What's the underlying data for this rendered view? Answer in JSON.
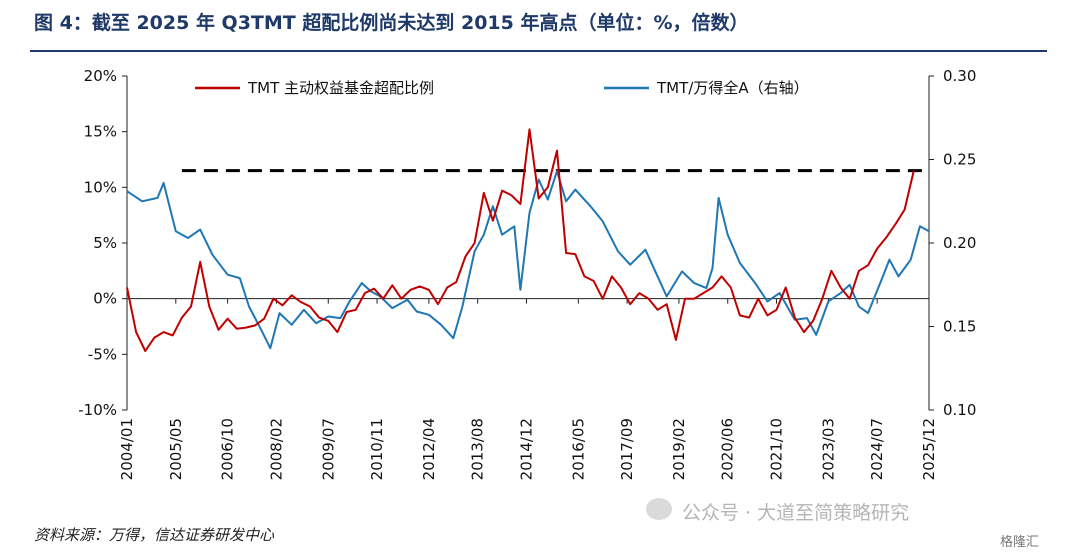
{
  "title": "图 4：截至 2025 年 Q3TMT 超配比例尚未达到 2015 年高点（单位：%，倍数）",
  "source": "资料来源：万得，信达证券研发中心",
  "watermark": "公众号 · 大道至简策略研究",
  "logo": "格隆汇",
  "colors": {
    "title": "#1f3a68",
    "series_red": "#c00000",
    "series_blue": "#1f77b4",
    "reference_line": "#000000"
  },
  "chart_data": {
    "type": "line",
    "title": "",
    "x_tick_labels": [
      "2004/01",
      "2005/05",
      "2006/10",
      "2008/02",
      "2009/07",
      "2010/11",
      "2012/04",
      "2013/08",
      "2014/12",
      "2016/05",
      "2017/09",
      "2019/02",
      "2020/06",
      "2021/10",
      "2023/03",
      "2024/07",
      "2025/12"
    ],
    "y_left": {
      "ticks": [
        "20%",
        "15%",
        "10%",
        "5%",
        "0%",
        "-5%",
        "-10%"
      ],
      "ylim": [
        -10,
        20
      ],
      "unit": "%"
    },
    "y_right": {
      "ticks": [
        "0.30",
        "0.25",
        "0.20",
        "0.15",
        "0.10"
      ],
      "ylim": [
        0.1,
        0.3
      ]
    },
    "legend": {
      "placement": "top"
    },
    "reference_line": {
      "axis": "left",
      "value": 11.5,
      "style": "dashed",
      "x_from": "2005/07",
      "x_to": "2025/12"
    },
    "series": [
      {
        "name": "TMT 主动权益基金超配比例",
        "axis": "left",
        "points": [
          [
            "2004/01",
            1.0
          ],
          [
            "2004/04",
            -3.0
          ],
          [
            "2004/07",
            -4.7
          ],
          [
            "2004/10",
            -3.5
          ],
          [
            "2005/01",
            -3.0
          ],
          [
            "2005/04",
            -3.3
          ],
          [
            "2005/07",
            -1.7
          ],
          [
            "2005/10",
            -0.7
          ],
          [
            "2006/01",
            3.3
          ],
          [
            "2006/04",
            -0.7
          ],
          [
            "2006/07",
            -2.8
          ],
          [
            "2006/10",
            -1.8
          ],
          [
            "2007/01",
            -2.7
          ],
          [
            "2007/04",
            -2.6
          ],
          [
            "2007/07",
            -2.4
          ],
          [
            "2007/10",
            -1.8
          ],
          [
            "2008/01",
            0.0
          ],
          [
            "2008/04",
            -0.6
          ],
          [
            "2008/07",
            0.3
          ],
          [
            "2008/10",
            -0.3
          ],
          [
            "2009/01",
            -0.7
          ],
          [
            "2009/04",
            -1.7
          ],
          [
            "2009/07",
            -2.0
          ],
          [
            "2009/10",
            -3.0
          ],
          [
            "2010/01",
            -1.2
          ],
          [
            "2010/04",
            -1.0
          ],
          [
            "2010/07",
            0.5
          ],
          [
            "2010/10",
            0.9
          ],
          [
            "2011/01",
            0.0
          ],
          [
            "2011/04",
            1.2
          ],
          [
            "2011/07",
            0.0
          ],
          [
            "2011/10",
            0.8
          ],
          [
            "2012/01",
            1.1
          ],
          [
            "2012/04",
            0.8
          ],
          [
            "2012/07",
            -0.5
          ],
          [
            "2012/10",
            1.0
          ],
          [
            "2013/01",
            1.5
          ],
          [
            "2013/04",
            3.8
          ],
          [
            "2013/07",
            5.0
          ],
          [
            "2013/10",
            9.5
          ],
          [
            "2014/01",
            7.0
          ],
          [
            "2014/04",
            9.7
          ],
          [
            "2014/07",
            9.3
          ],
          [
            "2014/10",
            8.5
          ],
          [
            "2015/01",
            15.2
          ],
          [
            "2015/04",
            9.0
          ],
          [
            "2015/07",
            10.0
          ],
          [
            "2015/10",
            13.3
          ],
          [
            "2016/01",
            4.1
          ],
          [
            "2016/04",
            4.0
          ],
          [
            "2016/07",
            2.0
          ],
          [
            "2016/10",
            1.6
          ],
          [
            "2017/01",
            0.0
          ],
          [
            "2017/04",
            2.0
          ],
          [
            "2017/07",
            1.0
          ],
          [
            "2017/10",
            -0.5
          ],
          [
            "2018/01",
            0.5
          ],
          [
            "2018/04",
            0.0
          ],
          [
            "2018/07",
            -1.0
          ],
          [
            "2018/10",
            -0.5
          ],
          [
            "2019/01",
            -3.7
          ],
          [
            "2019/04",
            0.0
          ],
          [
            "2019/07",
            0.0
          ],
          [
            "2019/10",
            0.5
          ],
          [
            "2020/01",
            1.0
          ],
          [
            "2020/04",
            2.0
          ],
          [
            "2020/07",
            1.0
          ],
          [
            "2020/10",
            -1.5
          ],
          [
            "2021/01",
            -1.7
          ],
          [
            "2021/04",
            0.0
          ],
          [
            "2021/07",
            -1.5
          ],
          [
            "2021/10",
            -1.0
          ],
          [
            "2022/01",
            1.0
          ],
          [
            "2022/04",
            -1.7
          ],
          [
            "2022/07",
            -3.0
          ],
          [
            "2022/10",
            -2.0
          ],
          [
            "2023/01",
            0.0
          ],
          [
            "2023/04",
            2.5
          ],
          [
            "2023/07",
            1.0
          ],
          [
            "2023/10",
            0.0
          ],
          [
            "2024/01",
            2.5
          ],
          [
            "2024/04",
            3.0
          ],
          [
            "2024/07",
            4.5
          ],
          [
            "2024/10",
            5.5
          ],
          [
            "2025/01",
            6.7
          ],
          [
            "2025/04",
            8.0
          ],
          [
            "2025/07",
            11.5
          ]
        ]
      },
      {
        "name": "TMT/万得全A（右轴）",
        "axis": "right",
        "points": [
          [
            "2004/01",
            0.231
          ],
          [
            "2004/06",
            0.225
          ],
          [
            "2004/11",
            0.227
          ],
          [
            "2005/01",
            0.236
          ],
          [
            "2005/05",
            0.207
          ],
          [
            "2005/09",
            0.203
          ],
          [
            "2006/01",
            0.208
          ],
          [
            "2006/05",
            0.193
          ],
          [
            "2006/10",
            0.181
          ],
          [
            "2007/02",
            0.179
          ],
          [
            "2007/05",
            0.162
          ],
          [
            "2007/09",
            0.148
          ],
          [
            "2007/12",
            0.137
          ],
          [
            "2008/03",
            0.158
          ],
          [
            "2008/07",
            0.151
          ],
          [
            "2008/11",
            0.16
          ],
          [
            "2009/03",
            0.152
          ],
          [
            "2009/07",
            0.156
          ],
          [
            "2009/11",
            0.155
          ],
          [
            "2010/02",
            0.165
          ],
          [
            "2010/06",
            0.176
          ],
          [
            "2010/09",
            0.171
          ],
          [
            "2010/12",
            0.168
          ],
          [
            "2011/04",
            0.161
          ],
          [
            "2011/09",
            0.166
          ],
          [
            "2011/12",
            0.159
          ],
          [
            "2012/04",
            0.157
          ],
          [
            "2012/08",
            0.151
          ],
          [
            "2012/12",
            0.143
          ],
          [
            "2013/03",
            0.162
          ],
          [
            "2013/07",
            0.195
          ],
          [
            "2013/10",
            0.205
          ],
          [
            "2014/01",
            0.222
          ],
          [
            "2014/04",
            0.205
          ],
          [
            "2014/08",
            0.21
          ],
          [
            "2014/10",
            0.172
          ],
          [
            "2015/01",
            0.218
          ],
          [
            "2015/04",
            0.238
          ],
          [
            "2015/07",
            0.226
          ],
          [
            "2015/10",
            0.243
          ],
          [
            "2016/01",
            0.225
          ],
          [
            "2016/04",
            0.232
          ],
          [
            "2016/09",
            0.222
          ],
          [
            "2017/01",
            0.213
          ],
          [
            "2017/06",
            0.195
          ],
          [
            "2017/10",
            0.187
          ],
          [
            "2018/03",
            0.196
          ],
          [
            "2018/07",
            0.18
          ],
          [
            "2018/10",
            0.168
          ],
          [
            "2019/03",
            0.183
          ],
          [
            "2019/07",
            0.176
          ],
          [
            "2019/11",
            0.173
          ],
          [
            "2020/01",
            0.185
          ],
          [
            "2020/03",
            0.227
          ],
          [
            "2020/06",
            0.205
          ],
          [
            "2020/10",
            0.188
          ],
          [
            "2021/03",
            0.176
          ],
          [
            "2021/07",
            0.165
          ],
          [
            "2021/11",
            0.17
          ],
          [
            "2022/04",
            0.154
          ],
          [
            "2022/08",
            0.155
          ],
          [
            "2022/11",
            0.145
          ],
          [
            "2023/03",
            0.165
          ],
          [
            "2023/07",
            0.17
          ],
          [
            "2023/10",
            0.175
          ],
          [
            "2024/01",
            0.162
          ],
          [
            "2024/04",
            0.158
          ],
          [
            "2024/08",
            0.176
          ],
          [
            "2024/11",
            0.19
          ],
          [
            "2025/02",
            0.18
          ],
          [
            "2025/06",
            0.19
          ],
          [
            "2025/09",
            0.21
          ],
          [
            "2025/12",
            0.207
          ]
        ]
      }
    ]
  }
}
